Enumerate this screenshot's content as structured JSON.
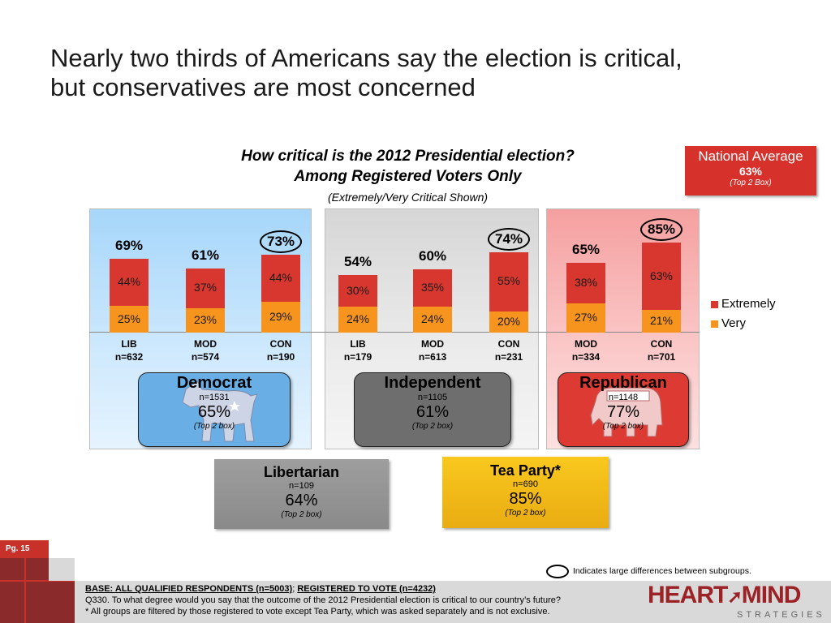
{
  "title_line1": "Nearly two thirds of Americans say the election is critical,",
  "title_line2": "but conservatives are most concerned",
  "question_line1": "How critical is the 2012 Presidential election?",
  "question_line2": "Among Registered Voters Only",
  "question_note": "(Extremely/Very Critical Shown)",
  "national": {
    "label": "National Average",
    "value": "63%",
    "note": "(Top 2 Box)"
  },
  "legend": [
    {
      "label": "Extremely",
      "color": "#d7372e"
    },
    {
      "label": "Very",
      "color": "#f7941d"
    }
  ],
  "parties": {
    "democrat": {
      "name": "Democrat",
      "n": "n=1531",
      "pct": "65%",
      "note": "(Top 2 box)"
    },
    "independent": {
      "name": "Independent",
      "n": "n=1105",
      "pct": "61%",
      "note": "(Top 2 box)"
    },
    "republican": {
      "name": "Republican",
      "n": "n=1148",
      "pct": "77%",
      "note": "(Top 2 box)"
    },
    "libertarian": {
      "name": "Libertarian",
      "n": "n=109",
      "pct": "64%",
      "note": "(Top 2 box)"
    },
    "teaparty": {
      "name": "Tea Party*",
      "n": "n=690",
      "pct": "85%",
      "note": "(Top 2 box)"
    }
  },
  "page_label": "Pg. 15",
  "ring_note": "Indicates large differences between subgroups.",
  "footer": {
    "base1": "BASE: ALL QUALIFIED RESPONDENTS (n=5003)",
    "sep": ";",
    "base2": "REGISTERED TO VOTE (n=4232)",
    "q": "Q330. To what degree would you say that the outcome of the 2012 Presidential election is critical to our country’s future?",
    "note": "* All groups are filtered by those registered to vote except Tea Party, which was asked separately and is not exclusive."
  },
  "logo": {
    "word1": "HEART",
    "word2": "MIND",
    "sub": "STRATEGIES"
  },
  "chart_data": {
    "type": "bar",
    "stacked": true,
    "categories": [
      "LIB",
      "MOD",
      "CON",
      "LIB",
      "MOD",
      "CON",
      "MOD",
      "CON"
    ],
    "group_n": [
      "n=632",
      "n=574",
      "n=190",
      "n=179",
      "n=613",
      "n=231",
      "n=334",
      "n=701"
    ],
    "series": [
      {
        "name": "Very",
        "values": [
          25,
          23,
          29,
          24,
          24,
          20,
          27,
          21
        ]
      },
      {
        "name": "Extremely",
        "values": [
          44,
          37,
          44,
          30,
          35,
          55,
          38,
          63
        ]
      }
    ],
    "totals": [
      69,
      61,
      73,
      54,
      60,
      74,
      65,
      85
    ],
    "circled": [
      false,
      false,
      true,
      false,
      false,
      true,
      false,
      true
    ],
    "ylim": [
      0,
      100
    ],
    "legend_position": "right"
  }
}
